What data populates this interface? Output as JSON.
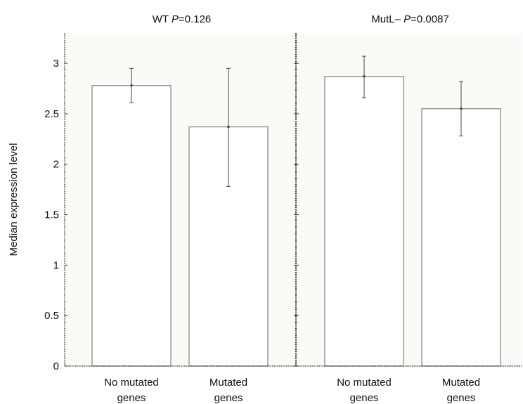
{
  "colors": {
    "panel_background": "#fbfaf6",
    "bar_fill": "#ffffff",
    "bar_stroke": "#8c8c8c",
    "axis": "#333333",
    "error_bar": "#444444"
  },
  "chart_data": [
    {
      "type": "bar",
      "title_prefix": "WT",
      "title_p_label": "P",
      "title_p_value": "=0.126",
      "categories": [
        [
          "No mutated",
          "genes"
        ],
        [
          "Mutated",
          "genes"
        ]
      ],
      "values": [
        2.78,
        2.37
      ],
      "error_low": [
        2.61,
        1.78
      ],
      "error_high": [
        2.95,
        2.95
      ],
      "ylabel": "Median expression level",
      "ylim": [
        0,
        3.3
      ],
      "yticks": [
        "0",
        "0.5",
        "1",
        "1.5",
        "2",
        "2.5",
        "3"
      ],
      "grid": false
    },
    {
      "type": "bar",
      "title_prefix": "MutL–",
      "title_p_label": "P",
      "title_p_value": "=0.0087",
      "categories": [
        [
          "No mutated",
          "genes"
        ],
        [
          "Mutated",
          "genes"
        ]
      ],
      "values": [
        2.87,
        2.55
      ],
      "error_low": [
        2.66,
        2.28
      ],
      "error_high": [
        3.07,
        2.82
      ],
      "ylabel": "",
      "ylim": [
        0,
        3.3
      ],
      "yticks": [],
      "grid": false
    }
  ]
}
